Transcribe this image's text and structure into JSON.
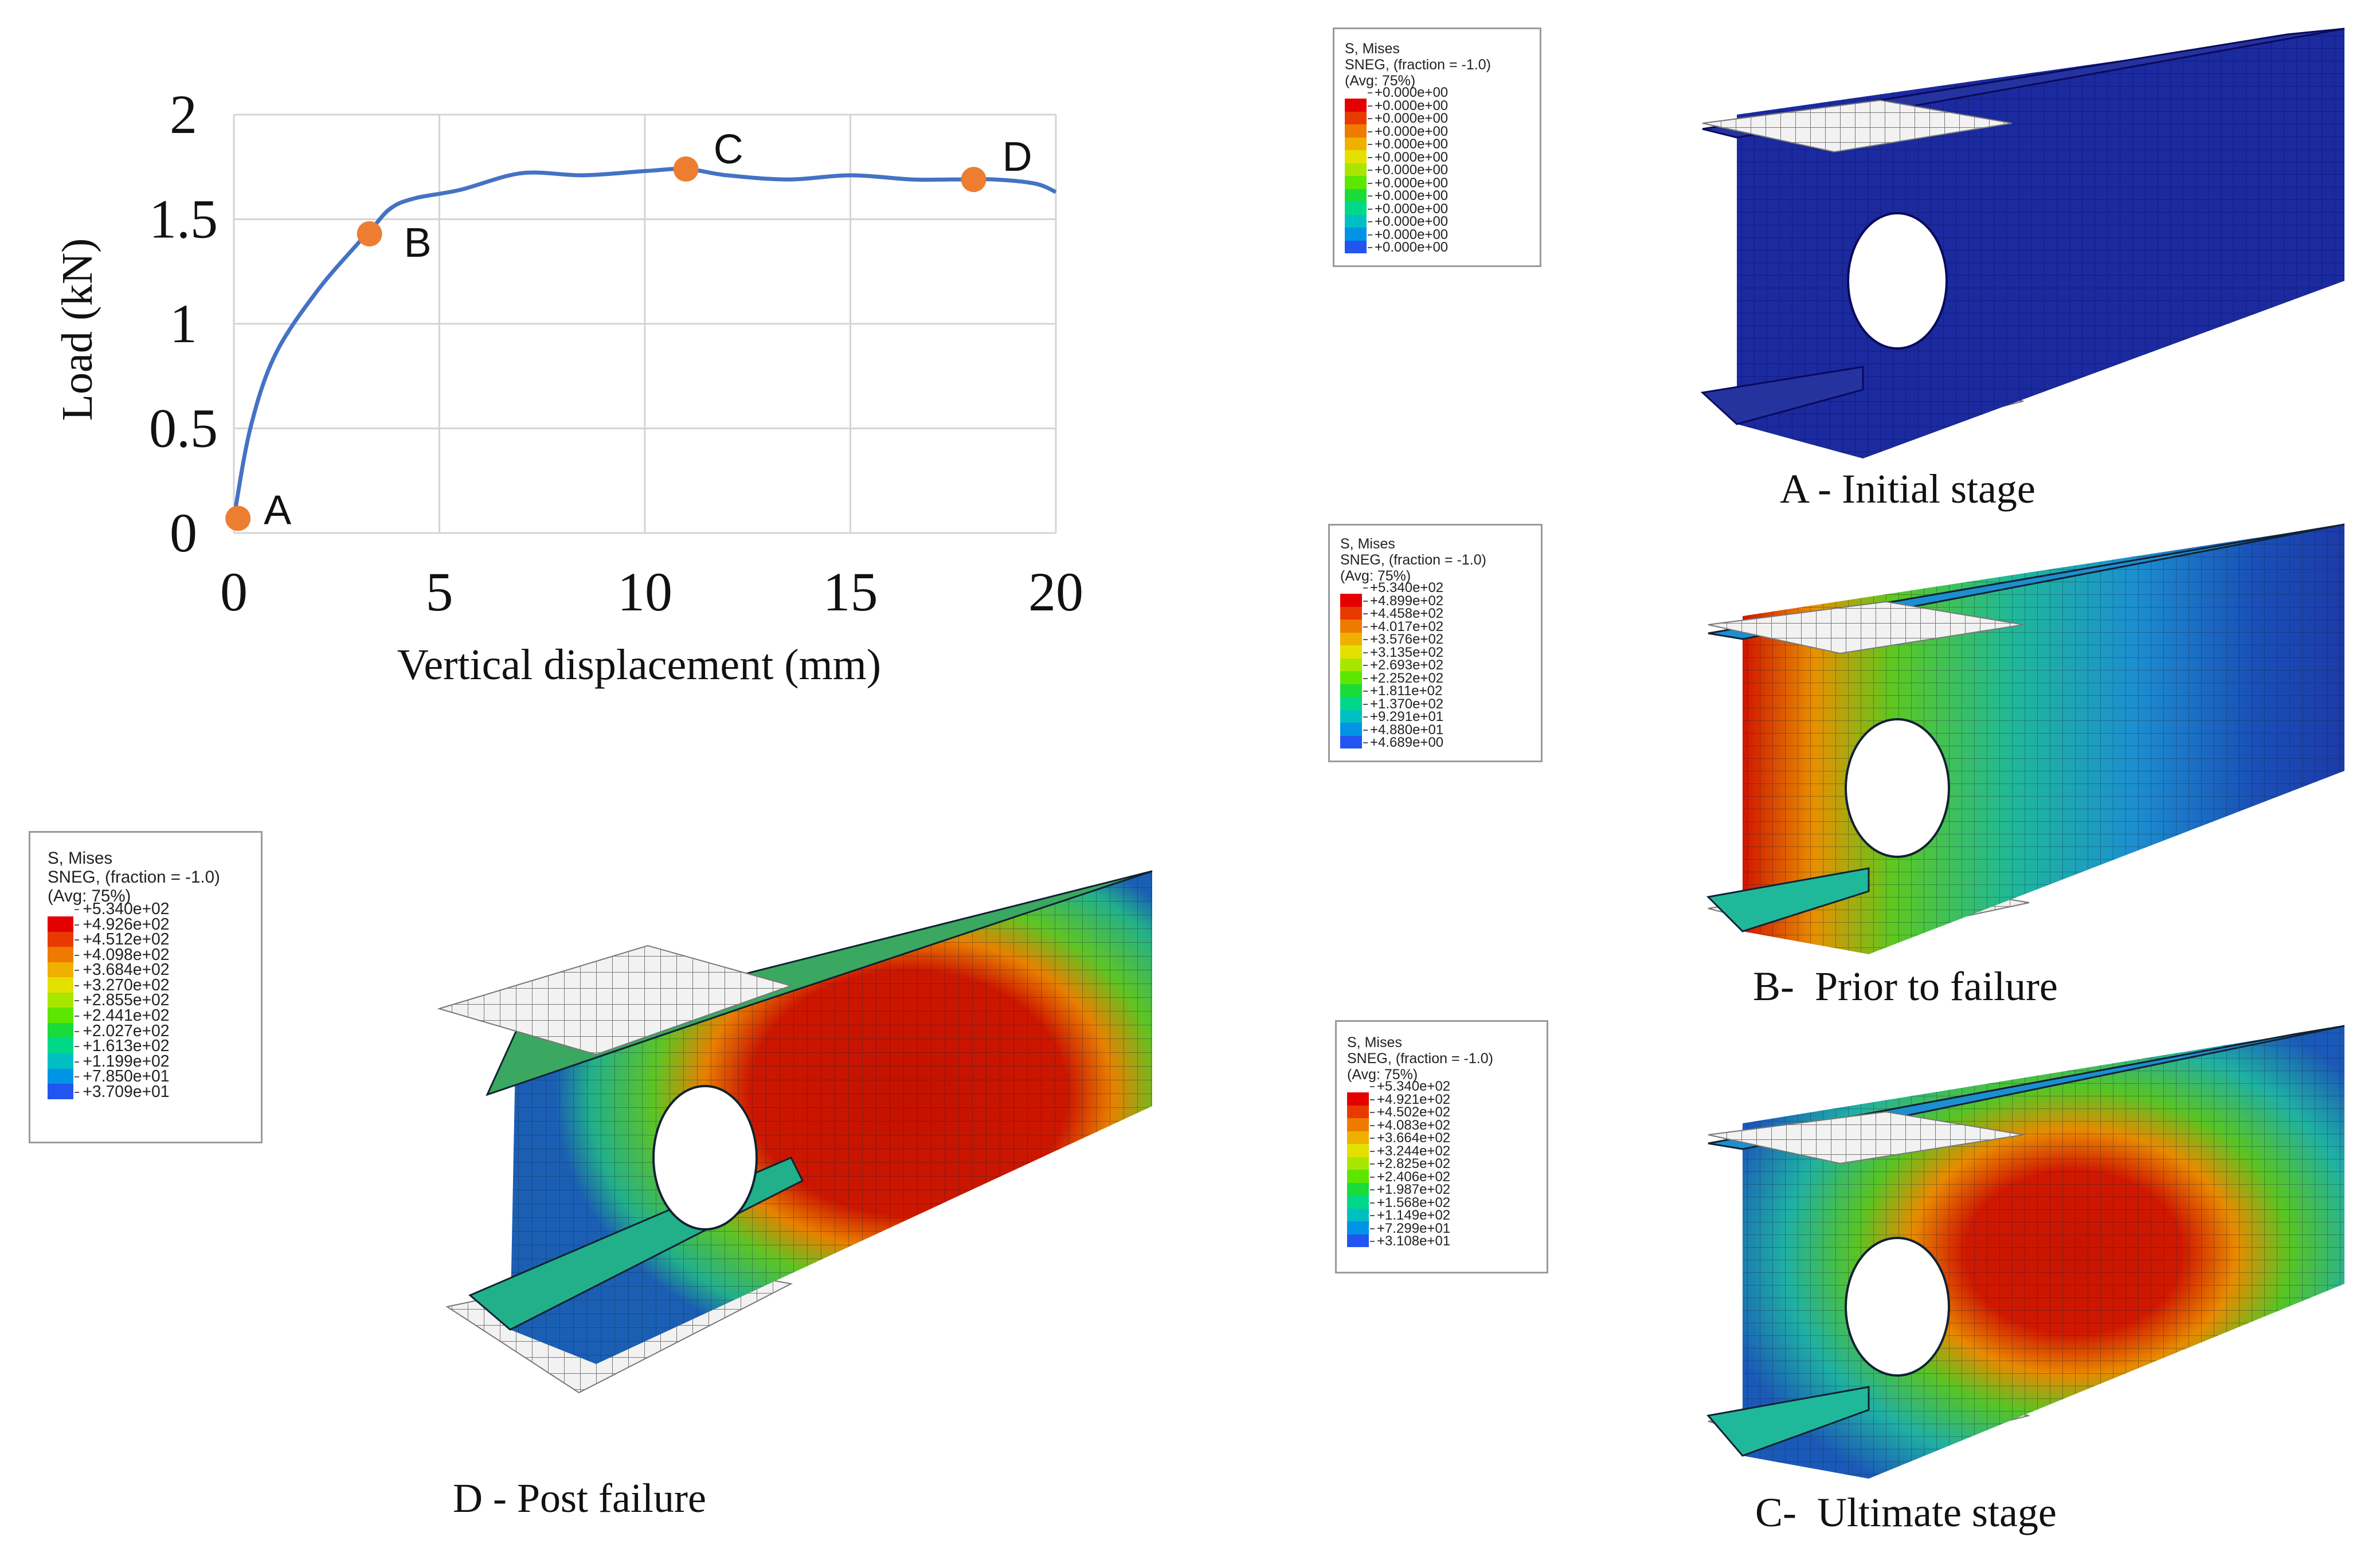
{
  "chart_data": {
    "type": "line",
    "title": "",
    "xlabel": "Vertical displacement (mm)",
    "ylabel": "Load (kN)",
    "xlim": [
      0,
      20
    ],
    "ylim": [
      0,
      2
    ],
    "x_ticks": [
      "0",
      "5",
      "10",
      "15",
      "20"
    ],
    "y_ticks": [
      "0",
      "0.5",
      "1",
      "1.5",
      "2"
    ],
    "grid": true,
    "series": [
      {
        "color": "#4472c4",
        "x": [
          0,
          0.4,
          1,
          2,
          3,
          3.3,
          3.8,
          4.4,
          5.5,
          7,
          8.5,
          10,
          11,
          12,
          13.5,
          15,
          16.5,
          17.5,
          18.5,
          19.5,
          20
        ],
        "y": [
          0.07,
          0.5,
          0.85,
          1.15,
          1.38,
          1.44,
          1.55,
          1.6,
          1.64,
          1.72,
          1.71,
          1.73,
          1.74,
          1.71,
          1.69,
          1.71,
          1.69,
          1.69,
          1.69,
          1.67,
          1.63
        ]
      }
    ],
    "points": [
      {
        "label": "A",
        "x": 0.1,
        "y": 0.07,
        "color": "#ed7d31"
      },
      {
        "label": "B",
        "x": 3.3,
        "y": 1.43,
        "color": "#ed7d31"
      },
      {
        "label": "C",
        "x": 11,
        "y": 1.74,
        "color": "#ed7d31"
      },
      {
        "label": "D",
        "x": 18,
        "y": 1.69,
        "color": "#ed7d31"
      }
    ]
  },
  "legends": {
    "a": {
      "title": "S, Mises",
      "sub": "SNEG, (fraction = -1.0)",
      "avg": "(Avg: 75%)",
      "values": [
        "+0.000e+00",
        "+0.000e+00",
        "+0.000e+00",
        "+0.000e+00",
        "+0.000e+00",
        "+0.000e+00",
        "+0.000e+00",
        "+0.000e+00",
        "+0.000e+00",
        "+0.000e+00",
        "+0.000e+00",
        "+0.000e+00",
        "+0.000e+00"
      ]
    },
    "b": {
      "title": "S, Mises",
      "sub": "SNEG, (fraction = -1.0)",
      "avg": "(Avg: 75%)",
      "values": [
        "+5.340e+02",
        "+4.899e+02",
        "+4.458e+02",
        "+4.017e+02",
        "+3.576e+02",
        "+3.135e+02",
        "+2.693e+02",
        "+2.252e+02",
        "+1.811e+02",
        "+1.370e+02",
        "+9.291e+01",
        "+4.880e+01",
        "+4.689e+00"
      ]
    },
    "c": {
      "title": "S, Mises",
      "sub": "SNEG, (fraction = -1.0)",
      "avg": "(Avg: 75%)",
      "values": [
        "+5.340e+02",
        "+4.921e+02",
        "+4.502e+02",
        "+4.083e+02",
        "+3.664e+02",
        "+3.244e+02",
        "+2.825e+02",
        "+2.406e+02",
        "+1.987e+02",
        "+1.568e+02",
        "+1.149e+02",
        "+7.299e+01",
        "+3.108e+01"
      ]
    },
    "d": {
      "title": "S, Mises",
      "sub": "SNEG, (fraction = -1.0)",
      "avg": "(Avg: 75%)",
      "values": [
        "+5.340e+02",
        "+4.926e+02",
        "+4.512e+02",
        "+4.098e+02",
        "+3.684e+02",
        "+3.270e+02",
        "+2.855e+02",
        "+2.441e+02",
        "+2.027e+02",
        "+1.613e+02",
        "+1.199e+02",
        "+7.850e+01",
        "+3.709e+01"
      ]
    }
  },
  "legend_colors": [
    "#e40000",
    "#e83a00",
    "#ee7a00",
    "#f0b000",
    "#e4e000",
    "#a8e600",
    "#5ce600",
    "#19dc3b",
    "#00d889",
    "#00bfc3",
    "#0093e6",
    "#2255ef",
    "#1515d8"
  ],
  "captions": {
    "a": "A - Initial stage",
    "b": "B-  Prior to failure",
    "c": "C-  Ultimate stage",
    "d": "D - Post failure"
  }
}
